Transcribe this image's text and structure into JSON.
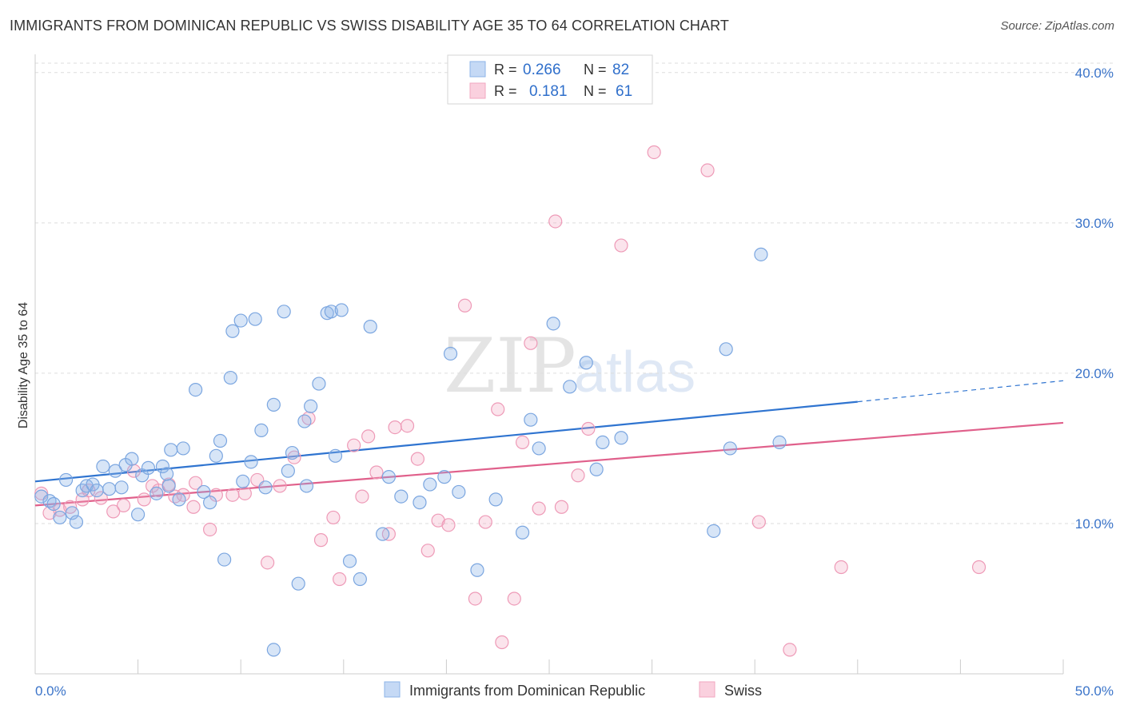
{
  "title": "IMMIGRANTS FROM DOMINICAN REPUBLIC VS SWISS DISABILITY AGE 35 TO 64 CORRELATION CHART",
  "source": "Source: ZipAtlas.com",
  "watermark": {
    "zip": "ZIP",
    "atlas": "atlas"
  },
  "colors": {
    "blue": "#8db4e8",
    "blue_line": "#2f74d0",
    "pink": "#f2a7c0",
    "pink_line": "#e0608b",
    "axis_text": "#3b74c9"
  },
  "legend_top": [
    {
      "r_label": "R =",
      "r_value": "0.266",
      "n_label": "N =",
      "n_value": "82"
    },
    {
      "r_label": "R =",
      "r_value": "0.181",
      "n_label": "N =",
      "n_value": "61"
    }
  ],
  "legend_bottom": [
    "Immigrants from Dominican Republic",
    "Swiss"
  ],
  "chart_data": {
    "type": "scatter",
    "title": "IMMIGRANTS FROM DOMINICAN REPUBLIC VS SWISS DISABILITY AGE 35 TO 64 CORRELATION CHART",
    "xlabel": "",
    "ylabel": "Disability Age 35 to 64",
    "xlim": [
      0,
      50
    ],
    "ylim": [
      0,
      41
    ],
    "x_tick_labels": [
      "0.0%",
      "50.0%"
    ],
    "y_ticks": [
      10,
      20,
      30,
      40
    ],
    "y_tick_labels": [
      "10.0%",
      "20.0%",
      "30.0%",
      "40.0%"
    ],
    "grid": "horizontal dashed",
    "legend_placement": "top-center and bottom",
    "series": [
      {
        "name": "Immigrants from Dominican Republic",
        "r": 0.266,
        "n": 82,
        "trend": {
          "x0": 0,
          "y0": 12.8,
          "x1": 40,
          "y1": 18.1,
          "dashed_to_x": 50,
          "dashed_to_y": 19.5
        },
        "points": [
          [
            0.3,
            11.8
          ],
          [
            0.7,
            11.5
          ],
          [
            0.9,
            11.3
          ],
          [
            1.2,
            10.4
          ],
          [
            1.5,
            12.9
          ],
          [
            1.8,
            10.7
          ],
          [
            2.0,
            10.1
          ],
          [
            2.3,
            12.2
          ],
          [
            2.5,
            12.5
          ],
          [
            2.8,
            12.6
          ],
          [
            3.0,
            12.2
          ],
          [
            3.3,
            13.8
          ],
          [
            3.6,
            12.3
          ],
          [
            3.9,
            13.5
          ],
          [
            4.2,
            12.4
          ],
          [
            4.4,
            13.9
          ],
          [
            4.7,
            14.3
          ],
          [
            5.0,
            10.6
          ],
          [
            5.2,
            13.2
          ],
          [
            5.5,
            13.7
          ],
          [
            5.9,
            12.0
          ],
          [
            6.2,
            13.8
          ],
          [
            6.5,
            12.5
          ],
          [
            6.4,
            13.3
          ],
          [
            6.6,
            14.9
          ],
          [
            7.0,
            11.6
          ],
          [
            7.2,
            15.0
          ],
          [
            7.8,
            18.9
          ],
          [
            8.2,
            12.1
          ],
          [
            8.5,
            11.4
          ],
          [
            8.8,
            14.5
          ],
          [
            9.0,
            15.5
          ],
          [
            9.2,
            7.6
          ],
          [
            9.5,
            19.7
          ],
          [
            9.6,
            22.8
          ],
          [
            10.0,
            23.5
          ],
          [
            10.1,
            12.8
          ],
          [
            10.5,
            14.1
          ],
          [
            10.7,
            23.6
          ],
          [
            11.0,
            16.2
          ],
          [
            11.2,
            12.4
          ],
          [
            11.6,
            17.9
          ],
          [
            11.6,
            1.6
          ],
          [
            12.1,
            24.1
          ],
          [
            12.3,
            13.5
          ],
          [
            12.5,
            14.7
          ],
          [
            12.8,
            6.0
          ],
          [
            13.1,
            16.8
          ],
          [
            13.2,
            12.5
          ],
          [
            13.4,
            17.8
          ],
          [
            13.8,
            19.3
          ],
          [
            14.2,
            24.0
          ],
          [
            14.4,
            24.1
          ],
          [
            14.6,
            14.5
          ],
          [
            14.9,
            24.2
          ],
          [
            15.3,
            7.5
          ],
          [
            15.8,
            6.3
          ],
          [
            16.3,
            23.1
          ],
          [
            16.9,
            9.3
          ],
          [
            17.2,
            13.1
          ],
          [
            17.8,
            11.8
          ],
          [
            18.7,
            11.4
          ],
          [
            19.2,
            12.6
          ],
          [
            19.9,
            13.1
          ],
          [
            20.2,
            21.3
          ],
          [
            20.6,
            12.1
          ],
          [
            21.5,
            6.9
          ],
          [
            22.4,
            11.6
          ],
          [
            23.7,
            9.4
          ],
          [
            24.1,
            16.9
          ],
          [
            24.5,
            15.0
          ],
          [
            25.2,
            23.3
          ],
          [
            26.0,
            19.1
          ],
          [
            26.8,
            20.7
          ],
          [
            27.3,
            13.6
          ],
          [
            27.6,
            15.4
          ],
          [
            28.5,
            15.7
          ],
          [
            33.0,
            9.5
          ],
          [
            33.6,
            21.6
          ],
          [
            33.8,
            15.0
          ],
          [
            35.3,
            27.9
          ],
          [
            36.2,
            15.4
          ]
        ]
      },
      {
        "name": "Swiss",
        "r": 0.181,
        "n": 61,
        "trend": {
          "x0": 0,
          "y0": 11.2,
          "x1": 50,
          "y1": 16.7
        },
        "points": [
          [
            0.3,
            12.0
          ],
          [
            0.7,
            10.7
          ],
          [
            1.2,
            10.9
          ],
          [
            1.7,
            11.1
          ],
          [
            2.3,
            11.6
          ],
          [
            2.6,
            12.2
          ],
          [
            3.2,
            11.7
          ],
          [
            3.8,
            10.8
          ],
          [
            4.3,
            11.2
          ],
          [
            4.8,
            13.5
          ],
          [
            5.3,
            11.6
          ],
          [
            5.7,
            12.5
          ],
          [
            6.0,
            12.2
          ],
          [
            6.5,
            12.6
          ],
          [
            6.8,
            11.8
          ],
          [
            7.2,
            11.9
          ],
          [
            7.7,
            11.1
          ],
          [
            7.8,
            12.7
          ],
          [
            8.5,
            9.6
          ],
          [
            8.8,
            11.9
          ],
          [
            9.6,
            11.9
          ],
          [
            10.2,
            12.0
          ],
          [
            10.8,
            12.9
          ],
          [
            11.3,
            7.4
          ],
          [
            11.9,
            12.5
          ],
          [
            12.6,
            14.4
          ],
          [
            13.3,
            17.0
          ],
          [
            13.9,
            8.9
          ],
          [
            14.5,
            10.4
          ],
          [
            14.8,
            6.3
          ],
          [
            15.5,
            15.2
          ],
          [
            15.9,
            11.8
          ],
          [
            16.2,
            15.8
          ],
          [
            16.6,
            13.4
          ],
          [
            17.2,
            9.3
          ],
          [
            17.5,
            16.4
          ],
          [
            18.1,
            16.5
          ],
          [
            18.6,
            14.3
          ],
          [
            19.1,
            8.2
          ],
          [
            19.6,
            10.2
          ],
          [
            20.1,
            9.9
          ],
          [
            20.9,
            24.5
          ],
          [
            21.4,
            5.0
          ],
          [
            21.9,
            10.1
          ],
          [
            22.5,
            17.6
          ],
          [
            22.7,
            2.1
          ],
          [
            23.3,
            5.0
          ],
          [
            23.7,
            15.4
          ],
          [
            24.1,
            22.0
          ],
          [
            24.5,
            11.0
          ],
          [
            25.3,
            30.1
          ],
          [
            25.6,
            11.1
          ],
          [
            26.4,
            13.2
          ],
          [
            26.9,
            16.3
          ],
          [
            28.5,
            28.5
          ],
          [
            30.1,
            34.7
          ],
          [
            32.7,
            33.5
          ],
          [
            35.2,
            10.1
          ],
          [
            36.7,
            1.6
          ],
          [
            39.2,
            7.1
          ],
          [
            45.9,
            7.1
          ]
        ]
      }
    ]
  }
}
